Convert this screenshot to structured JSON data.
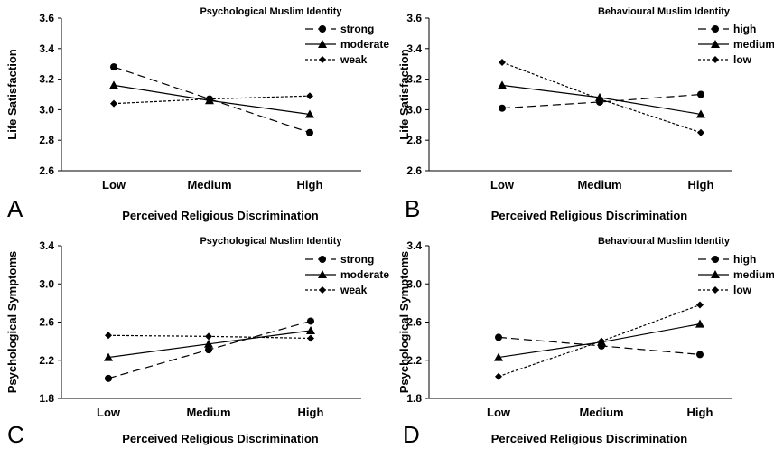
{
  "chart_data": [
    {
      "panel": "A",
      "type": "line",
      "xlabel": "Perceived Religious Discrimination",
      "ylabel": "Life Satisfaction",
      "categories": [
        "Low",
        "Medium",
        "High"
      ],
      "ylim": [
        2.6,
        3.6
      ],
      "yticks": [
        "2.6",
        "2.8",
        "3.0",
        "3.2",
        "3.4",
        "3.6"
      ],
      "legend_title": "Psychological Muslim Identity",
      "legend_position": "top-right",
      "series": [
        {
          "name": "strong",
          "values": [
            3.28,
            3.07,
            2.85
          ],
          "marker": "circle",
          "dash": "long-dash"
        },
        {
          "name": "moderate",
          "values": [
            3.16,
            3.06,
            2.97
          ],
          "marker": "triangle",
          "dash": "solid"
        },
        {
          "name": "weak",
          "values": [
            3.04,
            3.07,
            3.09
          ],
          "marker": "diamond",
          "dash": "short-dash"
        }
      ]
    },
    {
      "panel": "B",
      "type": "line",
      "xlabel": "Perceived Religious Discrimination",
      "ylabel": "Life Satisfaction",
      "categories": [
        "Low",
        "Medium",
        "High"
      ],
      "ylim": [
        2.6,
        3.6
      ],
      "yticks": [
        "2.6",
        "2.8",
        "3.0",
        "3.2",
        "3.4",
        "3.6"
      ],
      "legend_title": "Behavioural Muslim Identity",
      "legend_position": "top-right",
      "series": [
        {
          "name": "high",
          "values": [
            3.01,
            3.05,
            3.1
          ],
          "marker": "circle",
          "dash": "long-dash"
        },
        {
          "name": "medium",
          "values": [
            3.16,
            3.08,
            2.97
          ],
          "marker": "triangle",
          "dash": "solid"
        },
        {
          "name": "low",
          "values": [
            3.31,
            3.07,
            2.85
          ],
          "marker": "diamond",
          "dash": "short-dash"
        }
      ]
    },
    {
      "panel": "C",
      "type": "line",
      "xlabel": "Perceived Religious Discrimination",
      "ylabel": "Psychological Symptoms",
      "categories": [
        "Low",
        "Medium",
        "High"
      ],
      "ylim": [
        1.8,
        3.4
      ],
      "yticks": [
        "1.8",
        "2.2",
        "2.6",
        "3.0",
        "3.4"
      ],
      "legend_title": "Psychological Muslim Identity",
      "legend_position": "top-right",
      "series": [
        {
          "name": "strong",
          "values": [
            2.01,
            2.31,
            2.61
          ],
          "marker": "circle",
          "dash": "long-dash"
        },
        {
          "name": "moderate",
          "values": [
            2.23,
            2.37,
            2.51
          ],
          "marker": "triangle",
          "dash": "solid"
        },
        {
          "name": "weak",
          "values": [
            2.46,
            2.45,
            2.43
          ],
          "marker": "diamond",
          "dash": "short-dash"
        }
      ]
    },
    {
      "panel": "D",
      "type": "line",
      "xlabel": "Perceived Religious Discrimination",
      "ylabel": "Psychological Symptoms",
      "categories": [
        "Low",
        "Medium",
        "High"
      ],
      "ylim": [
        1.8,
        3.4
      ],
      "yticks": [
        "1.8",
        "2.2",
        "2.6",
        "3.0",
        "3.4"
      ],
      "legend_title": "Behavioural Muslim Identity",
      "legend_position": "top-right",
      "series": [
        {
          "name": "high",
          "values": [
            2.44,
            2.35,
            2.26
          ],
          "marker": "circle",
          "dash": "long-dash"
        },
        {
          "name": "medium",
          "values": [
            2.23,
            2.39,
            2.58
          ],
          "marker": "triangle",
          "dash": "solid"
        },
        {
          "name": "low",
          "values": [
            2.03,
            2.4,
            2.78
          ],
          "marker": "diamond",
          "dash": "short-dash"
        }
      ]
    }
  ]
}
